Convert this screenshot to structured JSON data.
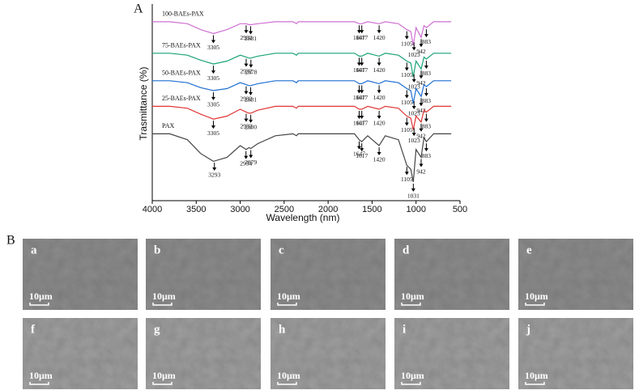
{
  "chart_data": {
    "type": "line",
    "panel_label": "A",
    "xlabel": "Wavelength (nm)",
    "ylabel": "Trasmittance (%)",
    "xlim": [
      4000,
      500
    ],
    "xticks": [
      4000,
      3500,
      3000,
      2500,
      2000,
      1500,
      1000,
      500
    ],
    "ylim": [
      0,
      100
    ],
    "x": [
      4000,
      3800,
      3600,
      3450,
      3305,
      3150,
      3000,
      2932,
      2900,
      2880,
      2800,
      2600,
      2400,
      2360,
      2340,
      2200,
      2000,
      1800,
      1700,
      1647,
      1617,
      1550,
      1420,
      1350,
      1200,
      1105,
      1060,
      1031,
      1000,
      942,
      910,
      883,
      800,
      700,
      600
    ],
    "series": [
      {
        "name": "100-BAEs-PAX",
        "color": "#cf6fd3",
        "values": [
          91,
          91,
          90,
          87,
          85,
          87,
          90,
          90,
          89.5,
          89.5,
          90,
          91,
          91,
          90,
          91,
          91,
          91,
          91,
          91,
          90,
          90,
          91,
          90,
          91,
          90,
          87,
          86,
          79,
          88,
          83,
          89,
          88,
          91,
          91,
          91
        ],
        "peaks": [
          3305,
          2932,
          2881,
          1647,
          1617,
          1420,
          1105,
          1023,
          942,
          883
        ]
      },
      {
        "name": "75-BAEs-PAX",
        "color": "#1aa37a",
        "values": [
          75,
          75,
          74,
          71.5,
          69.5,
          71,
          74,
          73,
          72.5,
          72.5,
          73.5,
          75,
          75,
          74,
          75,
          75,
          75,
          75,
          75,
          73.5,
          73.5,
          75,
          73.5,
          75,
          74,
          71,
          70,
          63,
          71,
          67,
          73,
          72,
          75,
          75,
          75
        ],
        "peaks": [
          3305,
          2932,
          2878,
          1647,
          1617,
          1420,
          1105,
          1023,
          942,
          883
        ]
      },
      {
        "name": "50-BAEs-PAX",
        "color": "#1f6fd1",
        "values": [
          61,
          61,
          60,
          57.5,
          56,
          57,
          60,
          59,
          58.5,
          58.5,
          59.5,
          61,
          61,
          60,
          61,
          61,
          61,
          61,
          61,
          59.5,
          59.5,
          61,
          59.5,
          61,
          60,
          57,
          56,
          49.5,
          57,
          53,
          59,
          58,
          61,
          61,
          61
        ],
        "peaks": [
          3305,
          2932,
          2881,
          1647,
          1617,
          1420,
          1105,
          1023,
          942,
          883
        ]
      },
      {
        "name": "25-BAEs-PAX",
        "color": "#e03535",
        "values": [
          48,
          48,
          47,
          44,
          41.5,
          43,
          46.5,
          45,
          44.5,
          44.5,
          46,
          48,
          48,
          47,
          48,
          48,
          48,
          48,
          48,
          46.5,
          46.5,
          48,
          46.5,
          48,
          47,
          43,
          42,
          36,
          43,
          40,
          46,
          45,
          48,
          48,
          48
        ],
        "peaks": [
          3305,
          2932,
          2880,
          1647,
          1617,
          1420,
          1105,
          1023,
          942,
          883
        ]
      },
      {
        "name": "PAX",
        "color": "#444444",
        "values": [
          34,
          34,
          31,
          24,
          20,
          22,
          28,
          26,
          27,
          26.5,
          29,
          33,
          34,
          33,
          34,
          34,
          34,
          34,
          34,
          31,
          30,
          33,
          28,
          33,
          31,
          18,
          16,
          9.5,
          26,
          22,
          32,
          30,
          34,
          34,
          34
        ],
        "peaks": [
          3293,
          2934,
          2879,
          1647,
          1617,
          1420,
          1105,
          1031,
          942,
          883
        ]
      }
    ]
  },
  "images": {
    "panel_label": "B",
    "panels": [
      {
        "label": "a",
        "scale": "10μm"
      },
      {
        "label": "b",
        "scale": "10μm"
      },
      {
        "label": "c",
        "scale": "10μm"
      },
      {
        "label": "d",
        "scale": "10μm"
      },
      {
        "label": "e",
        "scale": "10μm"
      },
      {
        "label": "f",
        "scale": "10μm"
      },
      {
        "label": "g",
        "scale": "10μm"
      },
      {
        "label": "h",
        "scale": "10μm"
      },
      {
        "label": "i",
        "scale": "10μm"
      },
      {
        "label": "j",
        "scale": "10μm"
      }
    ]
  }
}
